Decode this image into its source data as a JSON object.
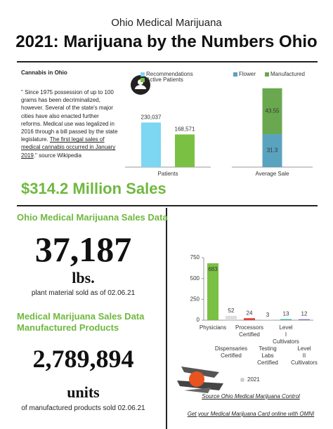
{
  "header": {
    "subtitle": "Ohio Medical Marijuana",
    "title": "2021: Marijuana by the Numbers Ohio"
  },
  "intro": {
    "heading": "Cannabis in Ohio",
    "text": "\" Since 1975 possession of up to 100 grams has been decriminalized, however. Several of the state's major cities have also enacted further reforms. Medical use was legalized in 2016 through a bill passed by the state legislature. ",
    "link": "The first legal sales of medical cannabis occurred in January 2019",
    "source": ".\" source Wikipedia"
  },
  "headline": "$314.2 Million Sales",
  "stats": [
    {
      "heading": "Ohio Medical Marijuana Sales Data",
      "number": "37,187",
      "unit": "lbs.",
      "caption": "plant material sold as of 02.06.21"
    },
    {
      "heading": "Medical Marijuana Sales Data Manufactured Products",
      "number": "2,789,894",
      "unit": "units",
      "caption": "of manufactured products sold 02.06.21"
    }
  ],
  "chart_data": [
    {
      "type": "bar",
      "categories": [
        "Patients"
      ],
      "series": [
        {
          "name": "Recommendations",
          "color": "#7dd6f2",
          "values": [
            230037
          ],
          "value_labels": [
            "230,037"
          ]
        },
        {
          "name": "Active Patients",
          "color": "#7ac143",
          "values": [
            168571
          ],
          "value_labels": [
            "168,571"
          ]
        }
      ],
      "ylim": [
        0,
        500000
      ]
    },
    {
      "type": "stacked_bar",
      "categories": [
        "Average Sale"
      ],
      "series": [
        {
          "name": "Flower",
          "color": "#5aa3bf",
          "values": [
            31.3
          ]
        },
        {
          "name": "Manufactured",
          "color": "#6aa84f",
          "values": [
            43.55
          ]
        }
      ],
      "ylim": [
        0,
        92
      ]
    },
    {
      "type": "bar",
      "categories": [
        "Physicians",
        "Dispensaries Certified",
        "Processors Certified",
        "Testing Labs Certified",
        "Level I Cultivators",
        "Level II Cultivators"
      ],
      "series": [
        {
          "name": "2021",
          "color": "#cccccc",
          "values": [
            683,
            52,
            24,
            3,
            13,
            12
          ],
          "colors": [
            "#7ac143",
            "#dddddd",
            "#e0453a",
            "#bbbbbb",
            "#4db6ac",
            "#9575cd"
          ]
        }
      ],
      "ylim": [
        0,
        750
      ],
      "yticks": [
        0,
        250,
        500,
        750
      ]
    }
  ],
  "footer": {
    "source": "Source Ohio Medical Marijuana Control",
    "cta": "Get your Medical Marijuana Card online with OMNI"
  }
}
